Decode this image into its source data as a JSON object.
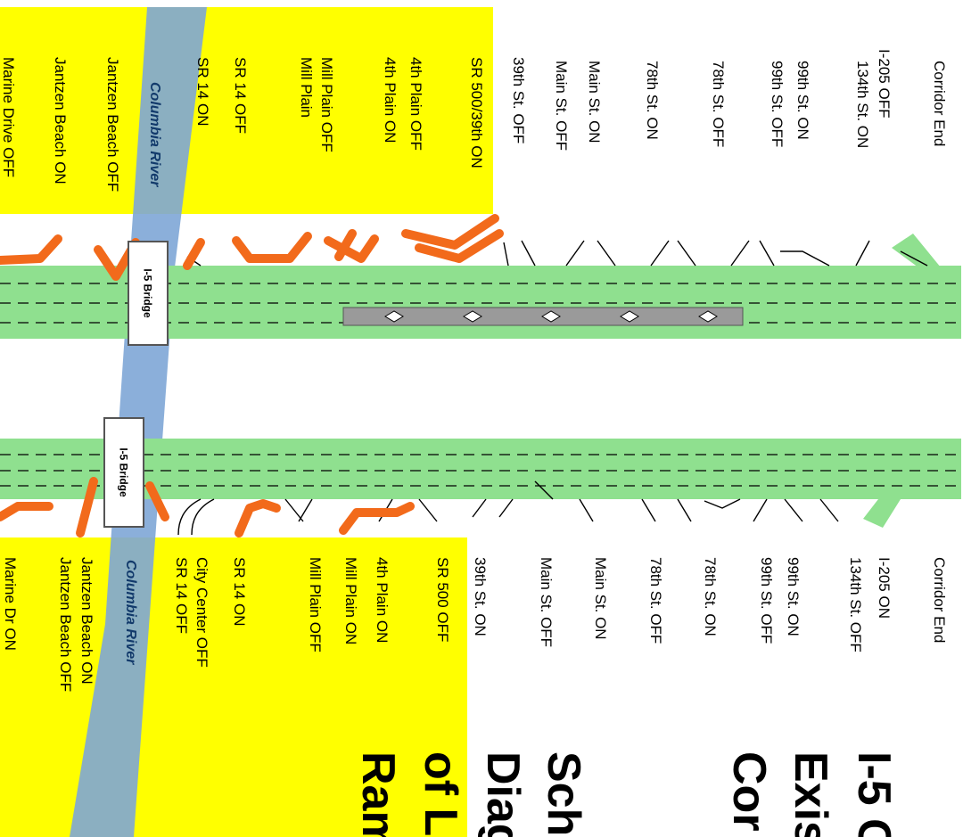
{
  "northbound_labels": [
    "Corridor End",
    "I-205 OFF",
    "134th St. ON",
    "99th St. ON",
    "99th St. OFF",
    "78th St. OFF",
    "78th St. ON",
    "Main St. ON",
    "Main St. OFF",
    "39th St. OFF",
    "SR 500/39th ON",
    "4th Plain OFF",
    "4th Plain ON",
    "Mill Plain OFF",
    "Mill Plain",
    "SR 14 OFF",
    "SR 14 ON",
    "Jantzen Beach OFF",
    "Jantzen Beach ON",
    "Marine Drive OFF"
  ],
  "southbound_labels": [
    "Corridor End",
    "I-205 ON",
    "134th St. OFF",
    "99th St. ON",
    "99th St. OFF",
    "78th St. ON",
    "78th St. OFF",
    "Main St. ON",
    "Main St. OFF",
    "39th St. ON",
    "SR 500 OFF",
    "4th Plain ON",
    "Mill Plain ON",
    "Mill Plain OFF",
    "SR 14 ON",
    "City Center OFF",
    "SR 14 OFF",
    "Jantzen Beach ON",
    "Jantzen Beach OFF",
    "Marine Dr ON"
  ],
  "river_label": "Columbia River",
  "bridge_label": "I-5 Bridge",
  "title_lines": [
    "I-5 C",
    "Exis",
    "Cor",
    "Sch",
    "Diag",
    "of L",
    "Ram"
  ],
  "colors": {
    "freeway": "#8fe08f",
    "ramp_highlight": "#f26a1b",
    "study_area": "#ffff00",
    "river": "#7ea6d6",
    "hov": "#9a9a9a"
  }
}
